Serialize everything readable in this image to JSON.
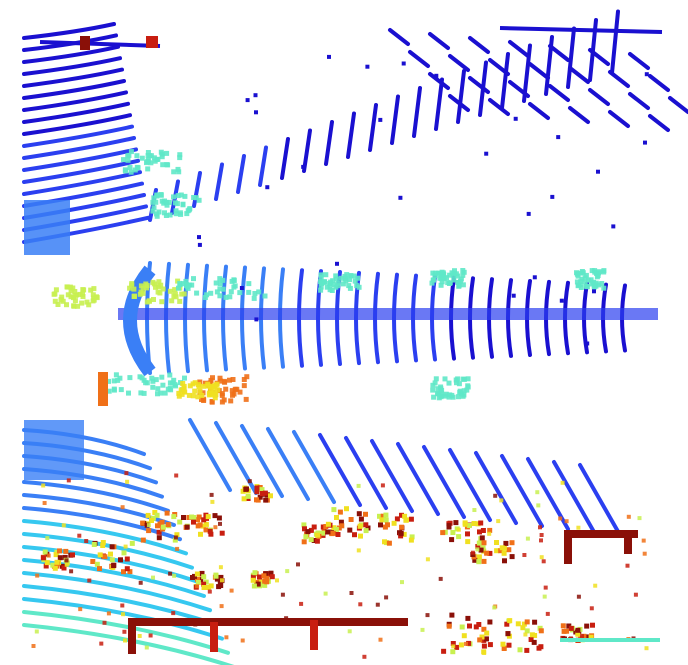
{
  "scene": {
    "background_color": "#ffffff",
    "palette": {
      "deep_blue": "#1a10d0",
      "blue": "#2b3ff0",
      "light_blue": "#3a7ff6",
      "cyan": "#36c8f0",
      "teal": "#5fe8c8",
      "yellow_green": "#c8f050",
      "yellow": "#f0e020",
      "orange": "#f07018",
      "red": "#c81e10",
      "dark_red": "#8a1008"
    },
    "color_ramp_order": [
      "deep_blue",
      "blue",
      "light_blue",
      "cyan",
      "teal",
      "yellow_green",
      "yellow",
      "orange",
      "red",
      "dark_red"
    ]
  }
}
